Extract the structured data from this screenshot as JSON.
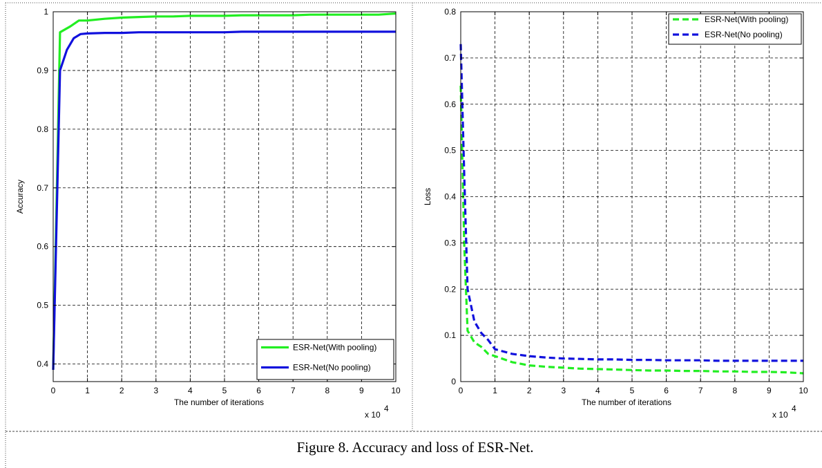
{
  "caption": "Figure 8. Accuracy and loss of ESR-Net.",
  "chart_data": [
    {
      "type": "line",
      "xlabel": "The number of iterations",
      "ylabel": "Accuracy",
      "x_multiplier": "x 10",
      "x_multiplier_exp": "4",
      "xlim": [
        0,
        10
      ],
      "ylim": [
        0.37,
        1.0
      ],
      "xticks": [
        0,
        1,
        2,
        3,
        4,
        5,
        6,
        7,
        8,
        9,
        10
      ],
      "yticks": [
        0.4,
        0.5,
        0.6,
        0.7,
        0.8,
        0.9,
        1
      ],
      "grid": true,
      "legend": "bottom-right",
      "series": [
        {
          "name": "ESR-Net(With pooling)",
          "color": "#22ee22",
          "dashed": false,
          "x": [
            0,
            0.2,
            0.5,
            0.75,
            1,
            1.5,
            2,
            2.5,
            3,
            3.5,
            4,
            4.5,
            5,
            5.5,
            6,
            6.5,
            7,
            7.5,
            8,
            8.5,
            9,
            9.5,
            10
          ],
          "y": [
            0.39,
            0.965,
            0.975,
            0.985,
            0.985,
            0.988,
            0.99,
            0.991,
            0.992,
            0.992,
            0.993,
            0.993,
            0.993,
            0.994,
            0.994,
            0.994,
            0.994,
            0.995,
            0.995,
            0.995,
            0.995,
            0.995,
            0.997
          ]
        },
        {
          "name": "ESR-Net(No pooling)",
          "color": "#1111dd",
          "dashed": false,
          "x": [
            0,
            0.2,
            0.4,
            0.6,
            0.8,
            1,
            1.5,
            2,
            2.5,
            3,
            3.5,
            4,
            4.5,
            5,
            5.5,
            6,
            6.5,
            7,
            7.5,
            8,
            8.5,
            9,
            9.5,
            10
          ],
          "y": [
            0.39,
            0.9,
            0.935,
            0.955,
            0.962,
            0.963,
            0.964,
            0.964,
            0.965,
            0.965,
            0.965,
            0.965,
            0.965,
            0.965,
            0.966,
            0.966,
            0.966,
            0.966,
            0.966,
            0.966,
            0.966,
            0.966,
            0.966,
            0.966
          ]
        }
      ]
    },
    {
      "type": "line",
      "xlabel": "The number of iterations",
      "ylabel": "Loss",
      "x_multiplier": "x 10",
      "x_multiplier_exp": "4",
      "xlim": [
        0,
        10
      ],
      "ylim": [
        0,
        0.8
      ],
      "xticks": [
        0,
        1,
        2,
        3,
        4,
        5,
        6,
        7,
        8,
        9,
        10
      ],
      "yticks": [
        0,
        0.1,
        0.2,
        0.3,
        0.4,
        0.5,
        0.6,
        0.7,
        0.8
      ],
      "grid": true,
      "legend": "top-right",
      "series": [
        {
          "name": "ESR-Net(With pooling)",
          "color": "#22ee22",
          "dashed": true,
          "x": [
            0,
            0.1,
            0.2,
            0.4,
            0.6,
            0.8,
            1,
            1.5,
            2,
            2.5,
            3,
            3.5,
            4,
            4.5,
            5,
            5.5,
            6,
            6.5,
            7,
            7.5,
            8,
            8.5,
            9,
            9.5,
            10
          ],
          "y": [
            0.64,
            0.3,
            0.11,
            0.085,
            0.075,
            0.06,
            0.055,
            0.042,
            0.035,
            0.032,
            0.03,
            0.028,
            0.027,
            0.026,
            0.025,
            0.024,
            0.024,
            0.023,
            0.023,
            0.022,
            0.022,
            0.021,
            0.021,
            0.02,
            0.018
          ]
        },
        {
          "name": "ESR-Net(No pooling)",
          "color": "#1111dd",
          "dashed": true,
          "x": [
            0,
            0.1,
            0.2,
            0.4,
            0.6,
            0.8,
            1,
            1.5,
            2,
            2.5,
            3,
            3.5,
            4,
            4.5,
            5,
            5.5,
            6,
            6.5,
            7,
            7.5,
            8,
            8.5,
            9,
            9.5,
            10
          ],
          "y": [
            0.73,
            0.45,
            0.2,
            0.13,
            0.105,
            0.09,
            0.07,
            0.06,
            0.055,
            0.052,
            0.05,
            0.049,
            0.048,
            0.048,
            0.047,
            0.047,
            0.046,
            0.046,
            0.046,
            0.045,
            0.045,
            0.045,
            0.045,
            0.045,
            0.045
          ]
        }
      ]
    }
  ]
}
